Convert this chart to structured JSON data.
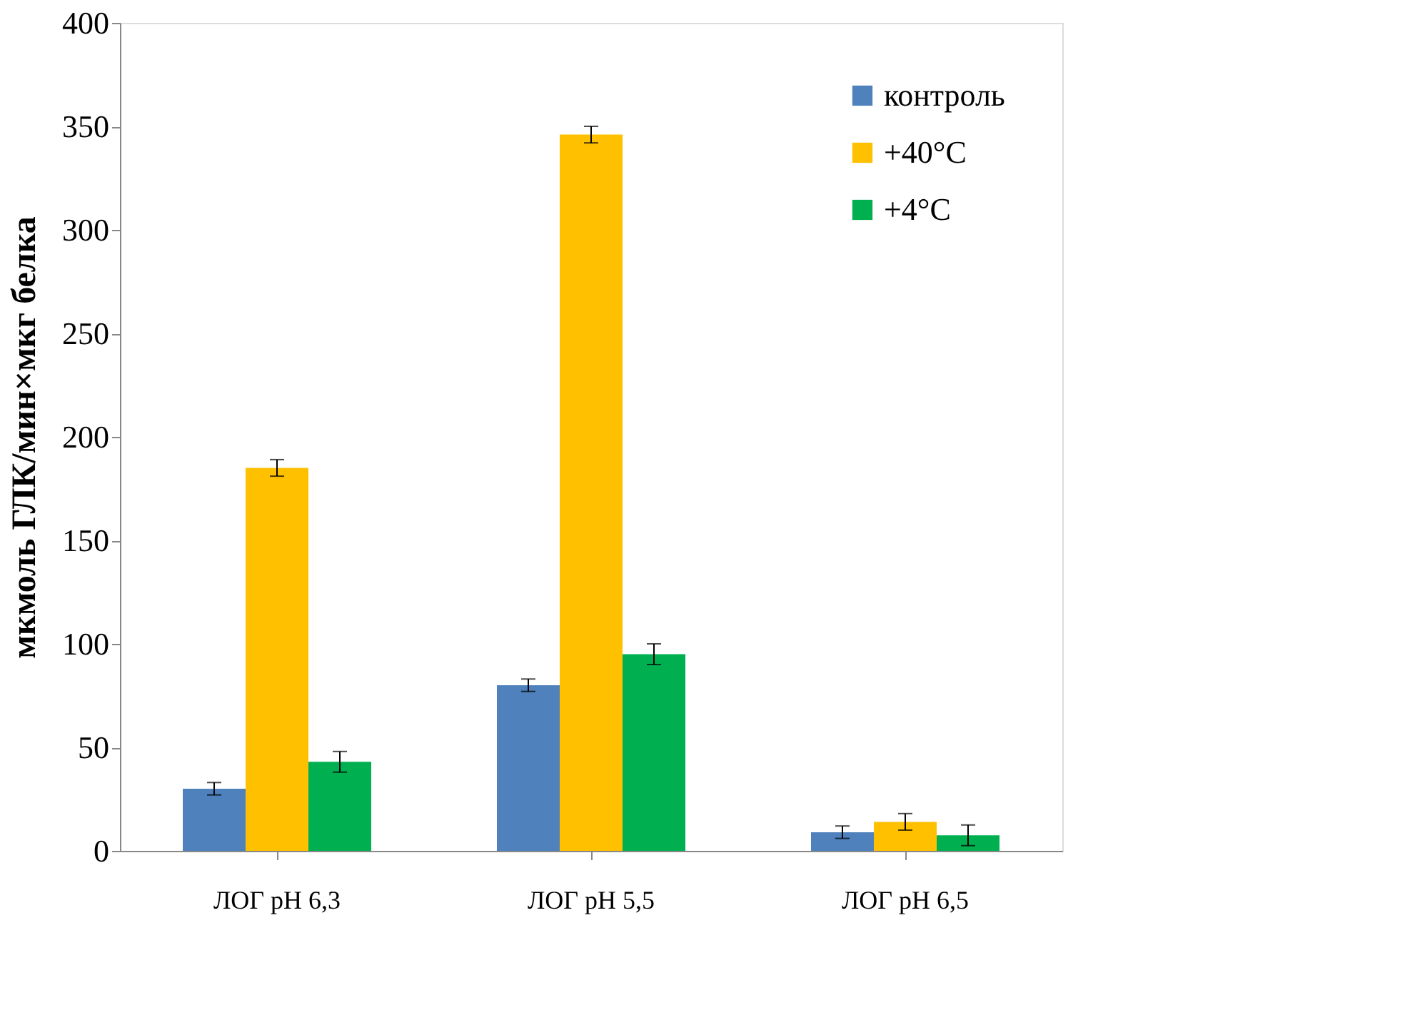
{
  "chart_data": {
    "type": "bar",
    "ylabel": "мкмоль ГЛК/мин×мкг белка",
    "categories": [
      "ЛОГ pH 6,3",
      "ЛОГ pH 5,5",
      "ЛОГ pH 6,5"
    ],
    "series": [
      {
        "name": "контроль",
        "color": "#4f81bd",
        "values": [
          30,
          80,
          9
        ],
        "errors": [
          3,
          3,
          3
        ]
      },
      {
        "name": "+40°C",
        "color": "#ffc000",
        "values": [
          185,
          346,
          14
        ],
        "errors": [
          4,
          4,
          4
        ]
      },
      {
        "name": "+4°C",
        "color": "#00b050",
        "values": [
          43,
          95,
          7.5
        ],
        "errors": [
          5,
          5,
          5
        ]
      }
    ],
    "ylim": [
      0,
      400
    ],
    "yticks": [
      0,
      50,
      100,
      150,
      200,
      250,
      300,
      350,
      400
    ],
    "grid": false,
    "legend": "top right"
  }
}
